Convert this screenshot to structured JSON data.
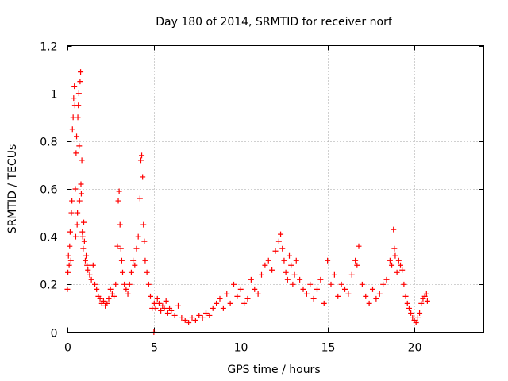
{
  "chart_data": {
    "type": "scatter",
    "title": "Day 180 of 2014, SRMTID for receiver norf",
    "xlabel": "GPS time / hours",
    "ylabel": "SRMTID / TECUs",
    "xlim": [
      0,
      24
    ],
    "ylim": [
      0,
      1.2
    ],
    "xticks": [
      0,
      5,
      10,
      15,
      20
    ],
    "xtick_labels": [
      "0",
      "5",
      "10",
      "15",
      "20"
    ],
    "yticks": [
      0,
      0.2,
      0.4,
      0.6,
      0.8,
      1.0,
      1.2
    ],
    "ytick_labels": [
      "0",
      "0.2",
      "0.4",
      "0.6",
      "0.8",
      "1",
      "1.2"
    ],
    "grid": true,
    "marker": "+",
    "series": [
      {
        "name": "norf",
        "color": "#ff0000",
        "x": [
          0.02,
          0.05,
          0.08,
          0.12,
          0.15,
          0.18,
          0.22,
          0.25,
          0.28,
          0.31,
          0.35,
          0.38,
          0.42,
          0.45,
          0.48,
          0.5,
          0.52,
          0.55,
          0.58,
          0.6,
          0.62,
          0.65,
          0.68,
          0.7,
          0.72,
          0.75,
          0.78,
          0.8,
          0.82,
          0.85,
          0.88,
          0.9,
          0.93,
          0.96,
          1.0,
          1.05,
          1.1,
          1.15,
          1.2,
          1.3,
          1.4,
          1.5,
          1.6,
          1.7,
          1.8,
          1.9,
          2.0,
          2.1,
          2.2,
          2.3,
          2.4,
          2.5,
          2.6,
          2.7,
          2.8,
          2.9,
          2.95,
          3.0,
          3.05,
          3.1,
          3.15,
          3.2,
          3.3,
          3.4,
          3.5,
          3.6,
          3.7,
          3.8,
          3.9,
          4.0,
          4.1,
          4.2,
          4.25,
          4.3,
          4.35,
          4.4,
          4.45,
          4.5,
          4.6,
          4.7,
          4.8,
          4.9,
          5.0,
          5.02,
          5.1,
          5.2,
          5.3,
          5.4,
          5.5,
          5.6,
          5.7,
          5.8,
          5.9,
          6.0,
          6.2,
          6.4,
          6.6,
          6.8,
          7.0,
          7.2,
          7.4,
          7.6,
          7.8,
          8.0,
          8.2,
          8.4,
          8.6,
          8.8,
          9.0,
          9.2,
          9.4,
          9.6,
          9.8,
          10.0,
          10.2,
          10.4,
          10.6,
          10.8,
          11.0,
          11.2,
          11.4,
          11.6,
          11.8,
          12.0,
          12.2,
          12.3,
          12.4,
          12.5,
          12.6,
          12.7,
          12.8,
          12.9,
          13.0,
          13.1,
          13.2,
          13.4,
          13.6,
          13.8,
          14.0,
          14.2,
          14.4,
          14.6,
          14.8,
          15.0,
          15.2,
          15.4,
          15.6,
          15.8,
          16.0,
          16.2,
          16.4,
          16.6,
          16.7,
          16.8,
          17.0,
          17.2,
          17.4,
          17.6,
          17.8,
          18.0,
          18.2,
          18.4,
          18.6,
          18.7,
          18.8,
          18.85,
          18.9,
          19.0,
          19.1,
          19.2,
          19.3,
          19.4,
          19.5,
          19.6,
          19.7,
          19.8,
          19.9,
          20.0,
          20.1,
          20.2,
          20.3,
          20.4,
          20.5,
          20.6,
          20.7,
          20.75
        ],
        "y": [
          0.18,
          0.25,
          0.32,
          0.28,
          0.36,
          0.42,
          0.3,
          0.5,
          0.55,
          0.85,
          0.9,
          0.98,
          1.03,
          0.95,
          0.6,
          0.4,
          0.75,
          0.82,
          0.45,
          0.5,
          0.9,
          0.95,
          1.0,
          0.78,
          0.55,
          1.05,
          1.09,
          0.62,
          0.58,
          0.72,
          0.42,
          0.4,
          0.35,
          0.46,
          0.38,
          0.3,
          0.32,
          0.28,
          0.26,
          0.24,
          0.22,
          0.28,
          0.2,
          0.18,
          0.15,
          0.14,
          0.12,
          0.13,
          0.11,
          0.12,
          0.14,
          0.18,
          0.16,
          0.15,
          0.2,
          0.36,
          0.55,
          0.59,
          0.45,
          0.35,
          0.3,
          0.25,
          0.2,
          0.18,
          0.16,
          0.2,
          0.25,
          0.3,
          0.28,
          0.35,
          0.4,
          0.56,
          0.72,
          0.74,
          0.65,
          0.45,
          0.38,
          0.3,
          0.25,
          0.2,
          0.15,
          0.1,
          0.0,
          0.12,
          0.1,
          0.14,
          0.12,
          0.09,
          0.11,
          0.1,
          0.13,
          0.08,
          0.1,
          0.09,
          0.07,
          0.11,
          0.06,
          0.05,
          0.04,
          0.06,
          0.05,
          0.07,
          0.06,
          0.08,
          0.07,
          0.1,
          0.12,
          0.14,
          0.1,
          0.16,
          0.12,
          0.2,
          0.15,
          0.18,
          0.12,
          0.14,
          0.22,
          0.18,
          0.16,
          0.24,
          0.28,
          0.3,
          0.26,
          0.34,
          0.38,
          0.41,
          0.35,
          0.3,
          0.25,
          0.22,
          0.32,
          0.28,
          0.2,
          0.24,
          0.3,
          0.22,
          0.18,
          0.16,
          0.2,
          0.14,
          0.18,
          0.22,
          0.12,
          0.3,
          0.2,
          0.24,
          0.15,
          0.2,
          0.18,
          0.16,
          0.24,
          0.3,
          0.28,
          0.36,
          0.2,
          0.15,
          0.12,
          0.18,
          0.14,
          0.16,
          0.2,
          0.22,
          0.3,
          0.28,
          0.43,
          0.35,
          0.32,
          0.25,
          0.3,
          0.28,
          0.26,
          0.2,
          0.15,
          0.12,
          0.1,
          0.08,
          0.06,
          0.05,
          0.04,
          0.06,
          0.08,
          0.12,
          0.14,
          0.15,
          0.16,
          0.13
        ]
      }
    ]
  }
}
